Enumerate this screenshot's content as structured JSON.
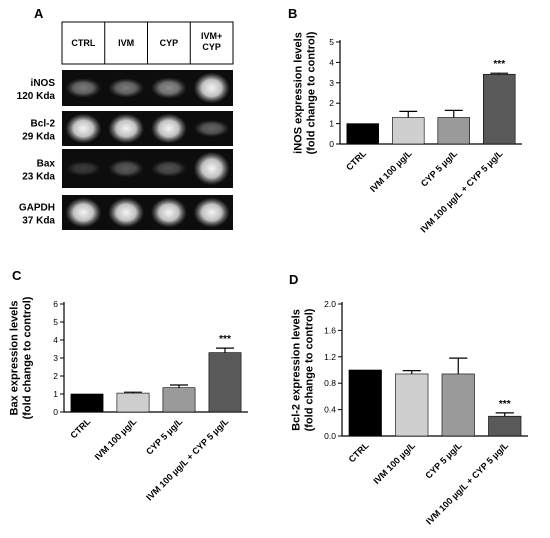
{
  "panels": {
    "a": "A",
    "b": "B",
    "c": "C",
    "d": "D"
  },
  "western_blot": {
    "lanes": [
      "CTRL",
      "IVM",
      "CYP",
      "IVM+\nCYP"
    ],
    "proteins": [
      {
        "name": "iNOS",
        "size": "120 Kda",
        "band_intensity": [
          0.35,
          0.35,
          0.45,
          0.95
        ]
      },
      {
        "name": "Bcl-2",
        "size": "29 Kda",
        "band_intensity": [
          0.95,
          0.95,
          0.95,
          0.25
        ]
      },
      {
        "name": "Bax",
        "size": "23 Kda",
        "band_intensity": [
          0.05,
          0.2,
          0.15,
          0.95
        ]
      },
      {
        "name": "GAPDH",
        "size": "37 Kda",
        "band_intensity": [
          0.95,
          0.95,
          0.95,
          0.95
        ]
      }
    ]
  },
  "chart_data": [
    {
      "panel": "B",
      "type": "bar",
      "categories": [
        "CTRL",
        "IVM 100 µg/L",
        "CYP 5 µg/L",
        "IVM 100 µg/L + CYP 5 µg/L"
      ],
      "values": [
        1.0,
        1.3,
        1.3,
        3.42
      ],
      "errors": [
        0.0,
        0.3,
        0.35,
        0.05
      ],
      "colors": [
        "#000000",
        "#cfcfcf",
        "#9a9a9a",
        "#595959"
      ],
      "annotations": [
        "",
        "",
        "",
        "***"
      ],
      "ylabel": "iNOS expression levels\n(fold change to control)",
      "ylim": [
        0,
        5
      ],
      "yticks": [
        "0",
        "1",
        "2",
        "3",
        "4",
        "5"
      ]
    },
    {
      "panel": "C",
      "type": "bar",
      "categories": [
        "CTRL",
        "IVM 100 µg/L",
        "CYP 5 µg/L",
        "IVM 100 µg/L + CYP 5 µg/L"
      ],
      "values": [
        1.0,
        1.05,
        1.35,
        3.3
      ],
      "errors": [
        0.0,
        0.05,
        0.15,
        0.25
      ],
      "colors": [
        "#000000",
        "#cfcfcf",
        "#9a9a9a",
        "#595959"
      ],
      "annotations": [
        "",
        "",
        "",
        "***"
      ],
      "ylabel": "Bax expression levels\n(fold change to control)",
      "ylim": [
        0,
        6
      ],
      "yticks": [
        "0",
        "1",
        "2",
        "3",
        "4",
        "5",
        "6"
      ]
    },
    {
      "panel": "D",
      "type": "bar",
      "categories": [
        "CTRL",
        "IVM 100 µg/L",
        "CYP 5 µg/L",
        "IVM 100 µg/L + CYP 5 µg/L"
      ],
      "values": [
        1.0,
        0.94,
        0.94,
        0.3
      ],
      "errors": [
        0.0,
        0.05,
        0.24,
        0.05
      ],
      "colors": [
        "#000000",
        "#cfcfcf",
        "#9a9a9a",
        "#595959"
      ],
      "annotations": [
        "",
        "",
        "",
        "***"
      ],
      "ylabel": "Bcl-2 expression levels\n(fold change to control)",
      "ylim": [
        0,
        2
      ],
      "yticks": [
        "0.0",
        "0.4",
        "0.8",
        "1.2",
        "1.6",
        "2.0"
      ]
    }
  ]
}
